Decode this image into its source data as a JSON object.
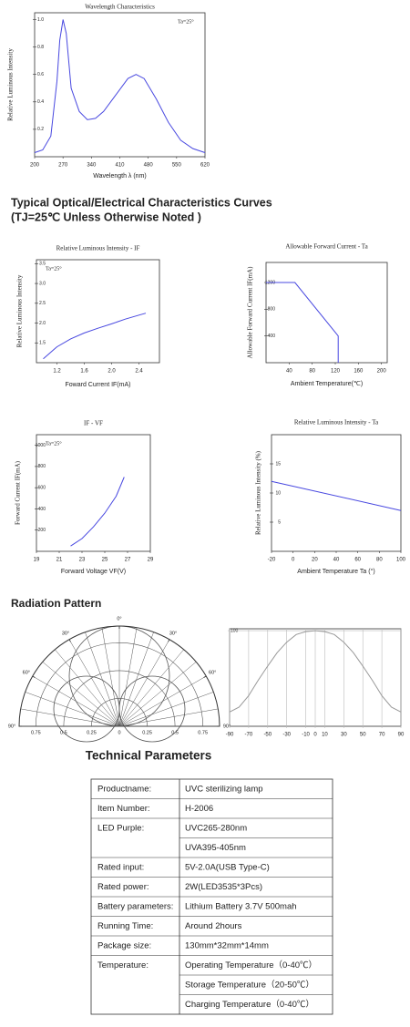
{
  "chart_data": [
    {
      "type": "line",
      "title": "Wavelength Characteristics",
      "annotation": "Ta=25°",
      "x_label": "Wavelength λ (nm)",
      "y_label": "Relative Luminous Intensity",
      "x": [
        200,
        220,
        240,
        255,
        262,
        270,
        278,
        290,
        310,
        330,
        350,
        370,
        400,
        430,
        450,
        470,
        500,
        530,
        560,
        590,
        620
      ],
      "series": [
        {
          "color": "#4848e0",
          "values": [
            0.03,
            0.05,
            0.15,
            0.55,
            0.85,
            1.0,
            0.9,
            0.5,
            0.33,
            0.27,
            0.28,
            0.33,
            0.45,
            0.57,
            0.6,
            0.57,
            0.42,
            0.25,
            0.12,
            0.06,
            0.03
          ]
        }
      ],
      "xlim": [
        200,
        620
      ],
      "xticks": [
        200,
        270,
        340,
        410,
        480,
        550,
        620
      ],
      "ylim": [
        0,
        1.05
      ],
      "yticks": [
        0.2,
        0.4,
        0.6,
        0.8,
        {
          "value": 1,
          "label": "1.0"
        }
      ]
    },
    {
      "type": "line",
      "title": "Relative Luminous Intensity - IF",
      "annotation": "Ta=25°",
      "x_label": "Foward Current IF(mA)",
      "y_label": "Relative Luminous Intensity",
      "x": [
        1.0,
        1.2,
        1.4,
        1.6,
        1.8,
        2.0,
        2.2,
        2.4,
        2.5
      ],
      "series": [
        {
          "color": "#4848e0",
          "values": [
            1.1,
            1.4,
            1.6,
            1.75,
            1.87,
            1.98,
            2.1,
            2.2,
            2.25
          ]
        }
      ],
      "xlim": [
        0.9,
        2.7
      ],
      "xticks": [
        1.2,
        1.6,
        {
          "value": 2,
          "label": "2.0"
        },
        2.4
      ],
      "ylim": [
        1,
        3.6
      ],
      "yticks": [
        1.5,
        {
          "value": 2,
          "label": "2.0"
        },
        2.5,
        {
          "value": 3,
          "label": "3.0"
        },
        3.5
      ]
    },
    {
      "type": "line",
      "title": "Allowable Forward Current - Ta",
      "x_label": "Ambient Temperature(℃)",
      "y_label": "Allowable Forward Current IF(mA)",
      "x": [
        0,
        50,
        125,
        125
      ],
      "series": [
        {
          "color": "#4848e0",
          "values": [
            1200,
            1200,
            400,
            0
          ]
        }
      ],
      "xlim": [
        0,
        210
      ],
      "xticks": [
        40,
        80,
        120,
        160,
        200
      ],
      "ylim": [
        0,
        1500
      ],
      "yticks": [
        400,
        800,
        1200
      ]
    },
    {
      "type": "line",
      "title": "IF - VF",
      "annotation": "Ta=25°",
      "x_label": "Forward Voltage VF(V)",
      "y_label": "Forward Current IF(mA)",
      "x": [
        22,
        23,
        24,
        25,
        26,
        26.7
      ],
      "series": [
        {
          "color": "#4848e0",
          "values": [
            50,
            120,
            230,
            360,
            520,
            700
          ]
        }
      ],
      "xlim": [
        19,
        29
      ],
      "xticks": [
        19,
        21,
        23,
        25,
        27,
        29
      ],
      "ylim": [
        0,
        1100
      ],
      "yticks": [
        200,
        400,
        600,
        800,
        1000
      ]
    },
    {
      "type": "line",
      "title": "Relative Luminous Intensity - Ta",
      "x_label": "Ambient Temperature Ta (°)",
      "y_label": "Relative Luminous Intensity (%)",
      "x": [
        -20,
        100
      ],
      "series": [
        {
          "color": "#4848e0",
          "values": [
            12,
            7
          ]
        }
      ],
      "xlim": [
        -20,
        100
      ],
      "xticks": [
        -20,
        0,
        20,
        40,
        60,
        80,
        100
      ],
      "ylim": [
        0,
        20
      ],
      "yticks": [
        5,
        10,
        15
      ]
    },
    {
      "type": "polar",
      "angle_ticks": [
        {
          "value": -90,
          "label": "90°"
        },
        {
          "value": -60,
          "label": "60°"
        },
        {
          "value": -30,
          "label": "30°"
        },
        {
          "value": 0,
          "label": "0°"
        },
        {
          "value": 30,
          "label": "30°"
        },
        {
          "value": 60,
          "label": "60°"
        },
        {
          "value": 90,
          "label": "90°"
        }
      ],
      "rlim": [
        0,
        0.9
      ],
      "rticks": [
        {
          "value": -0.75,
          "label": "0.75"
        },
        {
          "value": -0.5,
          "label": "0.5"
        },
        {
          "value": -0.25,
          "label": "0.25"
        },
        0,
        0.25,
        0.5,
        0.75
      ]
    },
    {
      "type": "line",
      "grid": true,
      "x": [
        -90,
        -80,
        -70,
        -60,
        -50,
        -40,
        -30,
        -20,
        -10,
        0,
        10,
        20,
        30,
        40,
        50,
        60,
        70,
        80,
        90
      ],
      "series": [
        {
          "color": "#999999",
          "values": [
            15,
            20,
            32,
            48,
            63,
            77,
            88,
            96,
            99,
            100,
            99,
            96,
            88,
            77,
            63,
            48,
            32,
            20,
            15
          ]
        }
      ],
      "xlim": [
        -90,
        90
      ],
      "xticks": [
        -90,
        -70,
        -50,
        -30,
        -10,
        0,
        10,
        30,
        50,
        70,
        90
      ],
      "ylim": [
        0,
        102
      ],
      "yticks": [
        100
      ]
    }
  ],
  "headings": {
    "curves": "Typical Optical/Electrical Characteristics Curves",
    "curves_note": "(TJ=25℃ Unless Otherwise Noted )",
    "radiation": "Radiation Pattern",
    "parameters": "Technical Parameters"
  },
  "table": {
    "rows": [
      {
        "label": "Productname:",
        "value": "UVC sterilizing lamp"
      },
      {
        "label": "Item Number:",
        "value": "H-2006"
      },
      {
        "label": "LED Purple:",
        "value": "UVC265-280nm"
      },
      {
        "value": "UVA395-405nm"
      },
      {
        "label": "Rated input:",
        "value": "5V-2.0A(USB Type-C)"
      },
      {
        "label": "Rated power:",
        "value": "2W(LED3535*3Pcs)"
      },
      {
        "label": "Battery parameters:",
        "value": "Lithium Battery 3.7V 500mah"
      },
      {
        "label": "Running Time:",
        "value": "Around 2hours"
      },
      {
        "label": "Package size:",
        "value": "130mm*32mm*14mm"
      },
      {
        "label": "Temperature:",
        "value": "Operating Temperature（0-40℃）"
      },
      {
        "value": "Storage Temperature（20-50℃）"
      },
      {
        "value": "Charging Temperature（0-40℃）"
      }
    ]
  }
}
